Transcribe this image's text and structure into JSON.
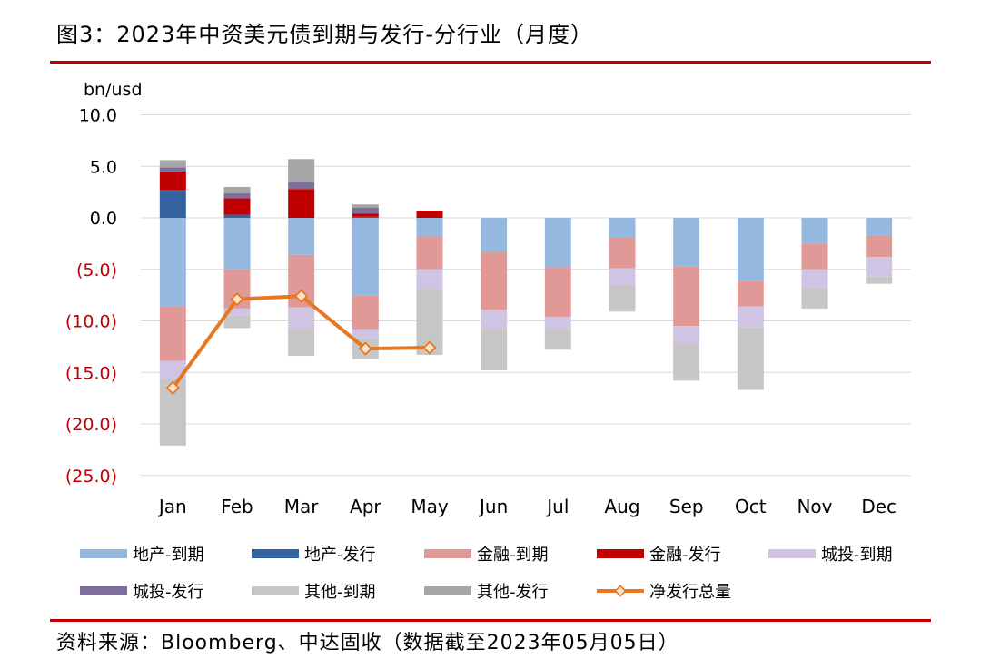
{
  "title": "图3：2023年中资美元债到期与发行-分行业（月度）",
  "source": "资料来源：Bloomberg、中达固收（数据截至2023年05月05日）",
  "chart_data": {
    "type": "bar",
    "subtype": "stacked bar with line overlay",
    "unit_label": "bn/usd",
    "ylim": [
      -25,
      10
    ],
    "yticks": [
      10,
      5,
      0,
      -5,
      -10,
      -15,
      -20,
      -25
    ],
    "ytick_labels": [
      "10.0",
      "5.0",
      "0.0",
      "(5.0)",
      "(10.0)",
      "(15.0)",
      "(20.0)",
      "(25.0)"
    ],
    "categories": [
      "Jan",
      "Feb",
      "Mar",
      "Apr",
      "May",
      "Jun",
      "Jul",
      "Aug",
      "Sep",
      "Oct",
      "Nov",
      "Dec"
    ],
    "series": [
      {
        "name": "地产-到期",
        "color": "#95b9de",
        "values": [
          -8.6,
          -5.0,
          -3.6,
          -7.5,
          -1.8,
          -3.3,
          -4.8,
          -1.9,
          -4.7,
          -6.1,
          -2.5,
          -1.7
        ]
      },
      {
        "name": "地产-发行",
        "color": "#3563a0",
        "values": [
          2.7,
          0.3,
          0,
          0.1,
          0,
          0,
          0,
          0,
          0,
          0,
          0,
          0
        ]
      },
      {
        "name": "金融-到期",
        "color": "#e19998",
        "values": [
          -5.3,
          -3.8,
          -5.1,
          -3.3,
          -3.2,
          -5.6,
          -4.8,
          -3.0,
          -5.8,
          -2.5,
          -2.5,
          -2.1
        ]
      },
      {
        "name": "金融-发行",
        "color": "#c00000",
        "values": [
          1.8,
          1.6,
          2.8,
          0.3,
          0.7,
          0,
          0,
          0,
          0,
          0,
          0,
          0
        ]
      },
      {
        "name": "城投-到期",
        "color": "#cfc4e3",
        "values": [
          -1.7,
          -0.7,
          -2.1,
          -0.9,
          -1.9,
          -1.9,
          -1.2,
          -1.6,
          -1.7,
          -2.0,
          -1.8,
          -1.9
        ]
      },
      {
        "name": "城投-发行",
        "color": "#7e6e9b",
        "values": [
          0.4,
          0.5,
          0.7,
          0.6,
          0,
          0,
          0,
          0,
          0,
          0,
          0,
          0
        ]
      },
      {
        "name": "其他-到期",
        "color": "#c6c6c6",
        "values": [
          -6.5,
          -1.2,
          -2.6,
          -2.0,
          -6.4,
          -4.0,
          -2.0,
          -2.6,
          -3.6,
          -6.1,
          -2.0,
          -0.7
        ]
      },
      {
        "name": "其他-发行",
        "color": "#a6a6a6",
        "values": [
          0.7,
          0.6,
          2.2,
          0.3,
          0,
          0,
          0,
          0,
          0,
          0,
          0,
          0
        ]
      }
    ],
    "line": {
      "name": "净发行总量",
      "color": "#e87722",
      "values": [
        -16.5,
        -7.9,
        -7.6,
        -12.7,
        -12.6,
        null,
        null,
        null,
        null,
        null,
        null,
        null
      ]
    }
  }
}
